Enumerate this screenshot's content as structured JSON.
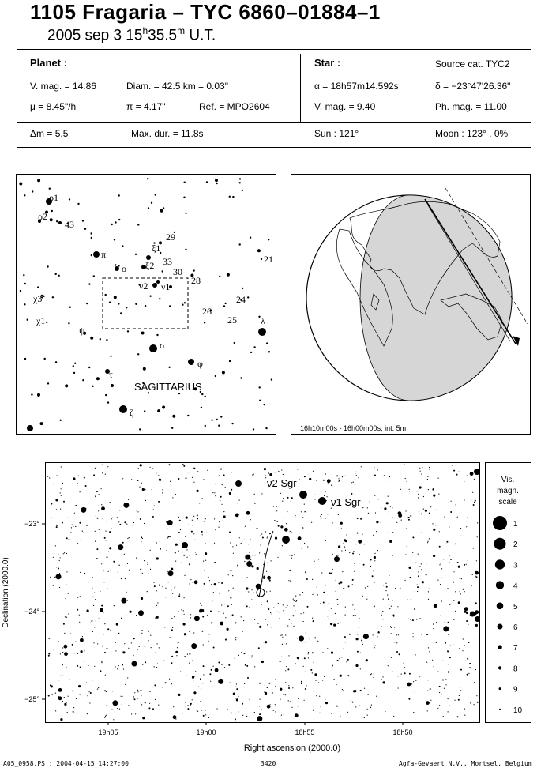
{
  "header": {
    "title": "1105 Fragaria  –  TYC 6860–01884–1",
    "date_prefix": "2005 sep  3  15",
    "hour_unit": "h",
    "time_minutes": "35.5",
    "minute_unit": "m",
    "time_suffix": " U.T."
  },
  "planet": {
    "heading": "Planet :",
    "vmag": "V. mag. = 14.86",
    "diam": "Diam. = 42.5 km = 0.03\"",
    "mu": "μ =  8.45\"/h",
    "pi": "π =  4.17\"",
    "ref": "Ref. = MPO2604",
    "dm": "Δm = 5.5",
    "maxdur": "Max. dur. = 11.8s"
  },
  "star": {
    "heading": "Star :",
    "source": "Source cat.  TYC2",
    "alpha": "α = 18h57m14.592s",
    "delta": "δ = −23°47'26.36\"",
    "vmag": "V. mag. =  9.40",
    "phmag": "Ph. mag. = 11.00",
    "sun": "Sun : 121°",
    "moon": "Moon : 123° ,  0%"
  },
  "constellation_map": {
    "name": "SAGITTARIUS",
    "labels": [
      "ρ1",
      "ρ2",
      "43",
      "π",
      "ο",
      "ξ1",
      "ξ2",
      "29",
      "33",
      "30",
      "28",
      "21",
      "ν2",
      "ν1",
      "χ3",
      "χ1",
      "ψ",
      "24",
      "26",
      "25",
      "λ",
      "σ",
      "φ",
      "τ",
      "ζ"
    ]
  },
  "globe": {
    "caption": "16h10m00s - 16h00m00s; int.  5m"
  },
  "star_chart": {
    "ylabel": "Declination (2000.0)",
    "xlabel": "Right ascension (2000.0)",
    "yticks": [
      "−23°",
      "−24°",
      "−25°"
    ],
    "xticks": [
      "19h05",
      "19h00",
      "18h55",
      "18h50"
    ],
    "star_labels": [
      "ν2 Sgr",
      "ν1 Sgr"
    ],
    "scale_title": [
      "Vis.",
      "magn.",
      "scale"
    ],
    "scale_values": [
      "1",
      "2",
      "3",
      "4",
      "5",
      "6",
      "7",
      "8",
      "9",
      "10"
    ]
  },
  "footer": {
    "left": "A05_0958.PS : 2004-04-15 14:27:00",
    "center": "3420",
    "right": "Agfa-Gevaert N.V., Mortsel, Belgium"
  }
}
